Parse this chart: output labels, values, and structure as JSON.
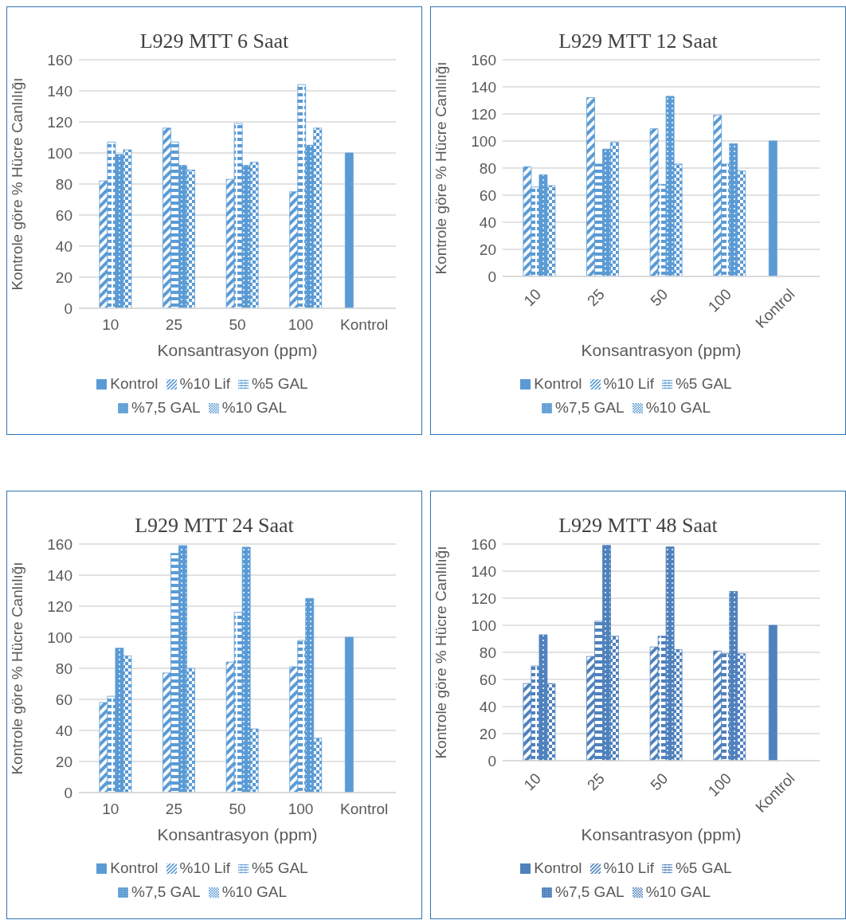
{
  "chart_data": [
    {
      "type": "bar",
      "title": "L929 MTT 6 Saat",
      "xlabel": "Konsantrasyon (ppm)",
      "ylabel": "Kontrole göre % Hücre Canlılığı",
      "categories": [
        "10",
        "25",
        "50",
        "100",
        "Kontrol"
      ],
      "ylim": [
        0,
        160
      ],
      "yticks": [
        0,
        20,
        40,
        60,
        80,
        100,
        120,
        140,
        160
      ],
      "grid": "y",
      "legend": "bottom",
      "series": [
        {
          "name": "Kontrol",
          "color": "#5b9bd5",
          "values": [
            null,
            null,
            null,
            null,
            100
          ]
        },
        {
          "name": "%10 Lif",
          "color": "#5b9bd5",
          "values": [
            82,
            116,
            83,
            75,
            null
          ]
        },
        {
          "name": "%5 GAL",
          "color": "#5b9bd5",
          "values": [
            107,
            107,
            119,
            144,
            null
          ]
        },
        {
          "name": "%7,5 GAL",
          "color": "#5b9bd5",
          "values": [
            99,
            92,
            92,
            105,
            null
          ]
        },
        {
          "name": "%10 GAL",
          "color": "#5b9bd5",
          "values": [
            102,
            89,
            94,
            116,
            null
          ]
        }
      ]
    },
    {
      "type": "bar",
      "title": "L929 MTT 12 Saat",
      "xlabel": "Konsantrasyon (ppm)",
      "ylabel": "Kontrole göre % Hücre Canlılığı",
      "categories": [
        "10",
        "25",
        "50",
        "100",
        "Kontrol"
      ],
      "ylim": [
        0,
        160
      ],
      "yticks": [
        0,
        20,
        40,
        60,
        80,
        100,
        120,
        140,
        160
      ],
      "grid": "y",
      "legend": "bottom",
      "series": [
        {
          "name": "Kontrol",
          "color": "#5b9bd5",
          "values": [
            null,
            null,
            null,
            null,
            100
          ]
        },
        {
          "name": "%10 Lif",
          "color": "#5b9bd5",
          "values": [
            81,
            132,
            109,
            119,
            null
          ]
        },
        {
          "name": "%5 GAL",
          "color": "#5b9bd5",
          "values": [
            66,
            83,
            68,
            83,
            null
          ]
        },
        {
          "name": "%7,5 GAL",
          "color": "#5b9bd5",
          "values": [
            75,
            94,
            133,
            98,
            null
          ]
        },
        {
          "name": "%10 GAL",
          "color": "#5b9bd5",
          "values": [
            67,
            99,
            83,
            78,
            null
          ]
        }
      ]
    },
    {
      "type": "bar",
      "title": "L929 MTT 24 Saat",
      "xlabel": "Konsantrasyon (ppm)",
      "ylabel": "Kontrole göre % Hücre Canlılığı",
      "categories": [
        "10",
        "25",
        "50",
        "100",
        "Kontrol"
      ],
      "ylim": [
        0,
        160
      ],
      "yticks": [
        0,
        20,
        40,
        60,
        80,
        100,
        120,
        140,
        160
      ],
      "grid": "y",
      "legend": "bottom",
      "series": [
        {
          "name": "Kontrol",
          "color": "#5b9bd5",
          "values": [
            null,
            null,
            null,
            null,
            100
          ]
        },
        {
          "name": "%10 Lif",
          "color": "#5b9bd5",
          "values": [
            58,
            77,
            84,
            81,
            null
          ]
        },
        {
          "name": "%5 GAL",
          "color": "#5b9bd5",
          "values": [
            62,
            154,
            116,
            98,
            null
          ]
        },
        {
          "name": "%7,5 GAL",
          "color": "#5b9bd5",
          "values": [
            93,
            159,
            158,
            125,
            null
          ]
        },
        {
          "name": "%10 GAL",
          "color": "#5b9bd5",
          "values": [
            88,
            80,
            41,
            35,
            null
          ]
        }
      ]
    },
    {
      "type": "bar",
      "title": "L929 MTT 48 Saat",
      "xlabel": "Konsantrasyon (ppm)",
      "ylabel": "Kontrole göre % Hücre Canlılığı",
      "categories": [
        "10",
        "25",
        "50",
        "100",
        "Kontrol"
      ],
      "ylim": [
        0,
        160
      ],
      "yticks": [
        0,
        20,
        40,
        60,
        80,
        100,
        120,
        140,
        160
      ],
      "grid": "y",
      "legend": "bottom",
      "series": [
        {
          "name": "Kontrol",
          "color": "#4f81bd",
          "values": [
            null,
            null,
            null,
            null,
            100
          ]
        },
        {
          "name": "%10 Lif",
          "color": "#4f81bd",
          "values": [
            57,
            77,
            84,
            81,
            null
          ]
        },
        {
          "name": "%5 GAL",
          "color": "#4f81bd",
          "values": [
            70,
            103,
            92,
            79,
            null
          ]
        },
        {
          "name": "%7,5 GAL",
          "color": "#4f81bd",
          "values": [
            93,
            159,
            158,
            125,
            null
          ]
        },
        {
          "name": "%10 GAL",
          "color": "#4f81bd",
          "values": [
            57,
            92,
            82,
            79,
            null
          ]
        }
      ]
    }
  ]
}
